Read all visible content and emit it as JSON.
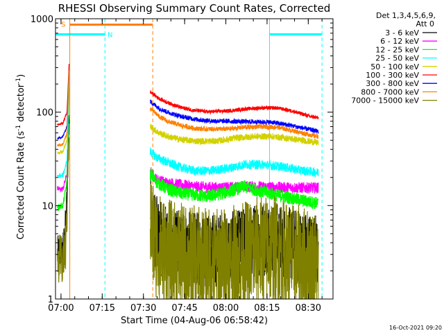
{
  "chart_data": {
    "type": "line",
    "title": "RHESSI Observing Summary Count Rates, Corrected",
    "xlabel": "Start Time (04-Aug-06 06:58:42)",
    "ylabel_parts": {
      "pre": "Corrected Count Rate (s",
      "sup1": "-1",
      "mid": " detector",
      "sup2": "-1",
      "post": ")"
    },
    "x_range_min": [
      -0.7,
      100.3
    ],
    "x_ticks": [
      {
        "min": 1.3,
        "label": "07:00"
      },
      {
        "min": 16.3,
        "label": "07:15"
      },
      {
        "min": 31.3,
        "label": "07:30"
      },
      {
        "min": 46.3,
        "label": "07:45"
      },
      {
        "min": 61.3,
        "label": "08:00"
      },
      {
        "min": 76.3,
        "label": "08:15"
      },
      {
        "min": 91.3,
        "label": "08:30"
      }
    ],
    "y_scale": "log",
    "ylim": [
      1,
      1000
    ],
    "y_ticks": [
      {
        "value": 1,
        "label": "1"
      },
      {
        "value": 10,
        "label": "10"
      },
      {
        "value": 100,
        "label": "100"
      },
      {
        "value": 1000,
        "label": "1000"
      }
    ],
    "legend_header": [
      "Det 1,3,4,5,6,9,",
      "Att 0"
    ],
    "series": [
      {
        "name": "3 - 6 keV",
        "color": "#000000",
        "pre": [
          [
            0,
            3.0
          ],
          [
            2,
            3.3
          ],
          [
            3.2,
            7
          ],
          [
            4.3,
            110
          ]
        ],
        "post": [
          [
            33.8,
            9
          ],
          [
            35,
            6
          ],
          [
            37,
            4.5
          ],
          [
            40,
            4
          ],
          [
            45,
            3.5
          ],
          [
            55,
            3.3
          ],
          [
            65,
            3.5
          ],
          [
            72,
            4.2
          ],
          [
            78,
            4.5
          ],
          [
            85,
            3.8
          ],
          [
            92,
            3.4
          ],
          [
            95,
            3.3
          ]
        ],
        "noise": 0.4
      },
      {
        "name": "6 - 12 keV",
        "color": "#ff00ff",
        "pre": [
          [
            0,
            15
          ],
          [
            2,
            15
          ],
          [
            3.5,
            22
          ],
          [
            4.3,
            200
          ]
        ],
        "post": [
          [
            33.8,
            23
          ],
          [
            36,
            19
          ],
          [
            40,
            17.5
          ],
          [
            50,
            16
          ],
          [
            60,
            15.5
          ],
          [
            70,
            16
          ],
          [
            80,
            15.7
          ],
          [
            90,
            15.5
          ],
          [
            95,
            15.5
          ]
        ],
        "noise": 0.06
      },
      {
        "name": "12 - 25 keV",
        "color": "#00ff00",
        "pre": [
          [
            0,
            9.5
          ],
          [
            2,
            10
          ],
          [
            3.5,
            18
          ],
          [
            4.3,
            230
          ]
        ],
        "post": [
          [
            33.8,
            22
          ],
          [
            36,
            18
          ],
          [
            40,
            15
          ],
          [
            45,
            13.5
          ],
          [
            55,
            12.5
          ],
          [
            62,
            14
          ],
          [
            68,
            16
          ],
          [
            75,
            14
          ],
          [
            85,
            12
          ],
          [
            95,
            10.5
          ]
        ],
        "noise": 0.07
      },
      {
        "name": "25 - 50 keV",
        "color": "#00ffff",
        "pre": [
          [
            0,
            21
          ],
          [
            2,
            21
          ],
          [
            3.5,
            30
          ],
          [
            4.3,
            260
          ]
        ],
        "post": [
          [
            33.8,
            38
          ],
          [
            36,
            33
          ],
          [
            40,
            29
          ],
          [
            45,
            25.5
          ],
          [
            50,
            23.5
          ],
          [
            55,
            23.5
          ],
          [
            62,
            25
          ],
          [
            68,
            27.5
          ],
          [
            75,
            27.5
          ],
          [
            82,
            26
          ],
          [
            88,
            24
          ],
          [
            95,
            22.5
          ]
        ],
        "noise": 0.05
      },
      {
        "name": "50 - 100 keV",
        "color": "#d2d200",
        "pre": [
          [
            0,
            37
          ],
          [
            2,
            38
          ],
          [
            3.5,
            50
          ],
          [
            4.3,
            300
          ]
        ],
        "post": [
          [
            33.8,
            70
          ],
          [
            37,
            60
          ],
          [
            40,
            55
          ],
          [
            45,
            51
          ],
          [
            50,
            49
          ],
          [
            58,
            49
          ],
          [
            65,
            53
          ],
          [
            72,
            55
          ],
          [
            78,
            55
          ],
          [
            85,
            52
          ],
          [
            95,
            47
          ]
        ],
        "noise": 0.035
      },
      {
        "name": "100 - 300 keV",
        "color": "#ff0000",
        "pre": [
          [
            0,
            73
          ],
          [
            2,
            76
          ],
          [
            3.5,
            100
          ],
          [
            4.3,
            360
          ]
        ],
        "post": [
          [
            33.8,
            165
          ],
          [
            37,
            140
          ],
          [
            40,
            127
          ],
          [
            45,
            112
          ],
          [
            50,
            104
          ],
          [
            55,
            101
          ],
          [
            62,
            103
          ],
          [
            68,
            108
          ],
          [
            74,
            111
          ],
          [
            80,
            111
          ],
          [
            86,
            102
          ],
          [
            92,
            90
          ],
          [
            95,
            87
          ]
        ],
        "noise": 0.02
      },
      {
        "name": "300 - 800 keV",
        "color": "#0000ff",
        "pre": [
          [
            0,
            52
          ],
          [
            2,
            55
          ],
          [
            3.5,
            70
          ],
          [
            4.3,
            330
          ]
        ],
        "post": [
          [
            33.8,
            130
          ],
          [
            37,
            110
          ],
          [
            40,
            100
          ],
          [
            45,
            90
          ],
          [
            50,
            84
          ],
          [
            55,
            81
          ],
          [
            62,
            80
          ],
          [
            70,
            79
          ],
          [
            78,
            78
          ],
          [
            85,
            72
          ],
          [
            92,
            65
          ],
          [
            95,
            62
          ]
        ],
        "noise": 0.025
      },
      {
        "name": "800 - 7000 keV",
        "color": "#ff8000",
        "pre": [
          [
            0,
            44
          ],
          [
            2,
            45
          ],
          [
            3.5,
            60
          ],
          [
            4.3,
            320
          ]
        ],
        "post": [
          [
            33.8,
            110
          ],
          [
            37,
            90
          ],
          [
            40,
            80
          ],
          [
            45,
            72
          ],
          [
            50,
            67
          ],
          [
            55,
            66
          ],
          [
            62,
            66
          ],
          [
            68,
            69
          ],
          [
            74,
            70
          ],
          [
            80,
            69
          ],
          [
            86,
            63
          ],
          [
            92,
            57
          ],
          [
            95,
            55
          ]
        ],
        "noise": 0.025
      },
      {
        "name": "7000 - 15000 keV",
        "color": "#808000",
        "pre": [
          [
            0,
            2.4
          ],
          [
            2,
            2.6
          ],
          [
            3.2,
            4
          ],
          [
            4.3,
            100
          ]
        ],
        "post": [
          [
            33.8,
            6.5
          ],
          [
            35,
            4.5
          ],
          [
            37,
            3.5
          ],
          [
            40,
            3
          ],
          [
            45,
            2.7
          ],
          [
            55,
            2.4
          ],
          [
            65,
            2.6
          ],
          [
            72,
            3.2
          ],
          [
            78,
            3.4
          ],
          [
            85,
            2.7
          ],
          [
            92,
            2.4
          ],
          [
            95,
            2.3
          ]
        ],
        "noise": 0.6
      }
    ],
    "flags": {
      "saa": {
        "label": "S",
        "color": "#ff8000",
        "range_min": [
          4.5,
          34.7
        ],
        "y": 865
      },
      "night": {
        "label": "N",
        "color": "#00ffff",
        "ranges_min": [
          [
            -0.7,
            17.3
          ],
          [
            77.2,
            96.3
          ]
        ],
        "y": 680
      }
    },
    "vlines": [
      {
        "min": -0.7,
        "color": "#00ffff",
        "dash": false
      },
      {
        "min": 4.5,
        "color": "#ff8000",
        "dash": false
      },
      {
        "min": 17.3,
        "color": "#00ffff",
        "dash": true
      },
      {
        "min": 34.7,
        "color": "#ff8000",
        "dash": true
      },
      {
        "min": 77.2,
        "color": "#00ffff",
        "dash": false
      },
      {
        "min": 96.3,
        "color": "#00ffff",
        "dash": true
      }
    ]
  },
  "footer": {
    "timestamp": "16-Oct-2021 09:20"
  }
}
